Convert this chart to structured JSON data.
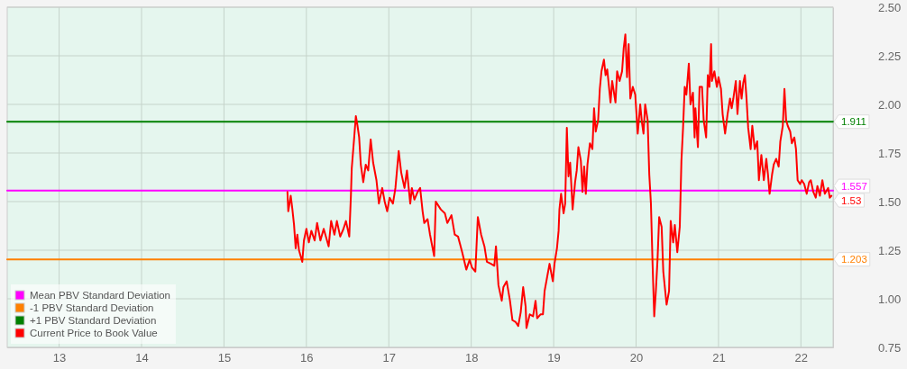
{
  "chart_data": {
    "type": "line",
    "xlim": [
      12.37,
      22.39
    ],
    "ylim": [
      0.75,
      2.5
    ],
    "xticks": [
      13,
      14,
      15,
      16,
      17,
      18,
      19,
      20,
      21,
      22
    ],
    "yticks": [
      {
        "value": 0.75,
        "label": "0.75"
      },
      {
        "value": 1,
        "label": "1.00"
      },
      {
        "value": 1.25,
        "label": "1.25"
      },
      {
        "value": 1.5,
        "label": "1.50"
      },
      {
        "value": 1.75,
        "label": "1.75"
      },
      {
        "value": 2,
        "label": "2.00"
      },
      {
        "value": 2.25,
        "label": "2.25"
      },
      {
        "value": 2.5,
        "label": "2.50"
      }
    ],
    "grid": true,
    "legend": "bottom left",
    "series": [
      {
        "name": "Mean PBV Standard Deviation",
        "color": "#ff00ff",
        "x": [
          12.37,
          22.39
        ],
        "values": [
          1.557,
          1.557
        ],
        "value_labels": [
          null,
          "1.557"
        ]
      },
      {
        "name": "-1 PBV Standard Deviation",
        "color": "#ff8000",
        "x": [
          12.37,
          22.39
        ],
        "values": [
          1.203,
          1.203
        ],
        "value_labels": [
          null,
          "1.203"
        ]
      },
      {
        "name": "+1 PBV Standard Deviation",
        "color": "#008000",
        "x": [
          12.37,
          22.39
        ],
        "values": [
          1.911,
          1.911
        ],
        "value_labels": [
          null,
          "1.911"
        ]
      },
      {
        "name": "Current Price to Book Value",
        "color": "#ff0000",
        "x": [
          15.77,
          15.78,
          15.81,
          15.83,
          15.85,
          15.87,
          15.89,
          15.91,
          15.95,
          15.97,
          16.0,
          16.03,
          16.06,
          16.1,
          16.13,
          16.17,
          16.21,
          16.25,
          16.27,
          16.3,
          16.34,
          16.37,
          16.41,
          16.45,
          16.48,
          16.52,
          16.54,
          16.55,
          16.58,
          16.6,
          16.62,
          16.64,
          16.66,
          16.69,
          16.72,
          16.75,
          16.78,
          16.81,
          16.85,
          16.88,
          16.92,
          16.95,
          16.98,
          17.01,
          17.05,
          17.08,
          17.12,
          17.15,
          17.19,
          17.22,
          17.26,
          17.28,
          17.31,
          17.35,
          17.38,
          17.41,
          17.43,
          17.47,
          17.5,
          17.55,
          17.57,
          17.63,
          17.68,
          17.71,
          17.76,
          17.8,
          17.84,
          17.89,
          17.94,
          17.98,
          18.01,
          18.05,
          18.08,
          18.12,
          18.16,
          18.19,
          18.24,
          18.28,
          18.3,
          18.33,
          18.37,
          18.39,
          18.43,
          18.47,
          18.5,
          18.54,
          18.57,
          18.6,
          18.63,
          18.66,
          18.67,
          18.71,
          18.75,
          18.78,
          18.8,
          18.84,
          18.87,
          18.89,
          18.92,
          18.95,
          18.99,
          19.01,
          19.04,
          19.06,
          19.07,
          19.09,
          19.12,
          19.14,
          19.16,
          19.18,
          19.2,
          19.23,
          19.26,
          19.28,
          19.3,
          19.33,
          19.35,
          19.37,
          19.39,
          19.41,
          19.44,
          19.47,
          19.49,
          19.51,
          19.54,
          19.56,
          19.58,
          19.61,
          19.63,
          19.65,
          19.69,
          19.71,
          19.75,
          19.77,
          19.8,
          19.83,
          19.85,
          19.87,
          19.89,
          19.91,
          19.93,
          19.96,
          19.99,
          20.02,
          20.05,
          20.07,
          20.09,
          20.11,
          20.14,
          20.16,
          20.18,
          20.2,
          20.22,
          20.24,
          20.26,
          20.28,
          20.31,
          20.33,
          20.37,
          20.4,
          20.42,
          20.45,
          20.47,
          20.5,
          20.53,
          20.55,
          20.57,
          20.59,
          20.61,
          20.64,
          20.66,
          20.69,
          20.71,
          20.72,
          20.75,
          20.77,
          20.8,
          20.82,
          20.85,
          20.87,
          20.89,
          20.91,
          20.92,
          20.95,
          20.98,
          21.0,
          21.03,
          21.05,
          21.08,
          21.11,
          21.14,
          21.16,
          21.18,
          21.21,
          21.23,
          21.26,
          21.28,
          21.3,
          21.32,
          21.34,
          21.36,
          21.39,
          21.41,
          21.44,
          21.47,
          21.49,
          21.52,
          21.55,
          21.58,
          21.6,
          21.62,
          21.65,
          21.67,
          21.7,
          21.73,
          21.75,
          21.78,
          21.8,
          21.82,
          21.84,
          21.87,
          21.89,
          21.92,
          21.94,
          21.96,
          21.99,
          22.01,
          22.04,
          22.07,
          22.1,
          22.12,
          22.15,
          22.18,
          22.2,
          22.23,
          22.26,
          22.29,
          22.33,
          22.35,
          22.37
        ],
        "values": [
          1.55,
          1.45,
          1.53,
          1.46,
          1.38,
          1.26,
          1.33,
          1.25,
          1.19,
          1.3,
          1.36,
          1.29,
          1.35,
          1.3,
          1.39,
          1.3,
          1.36,
          1.3,
          1.27,
          1.4,
          1.33,
          1.4,
          1.32,
          1.36,
          1.4,
          1.32,
          1.53,
          1.67,
          1.83,
          1.94,
          1.89,
          1.83,
          1.69,
          1.6,
          1.69,
          1.66,
          1.82,
          1.7,
          1.61,
          1.49,
          1.57,
          1.5,
          1.45,
          1.52,
          1.49,
          1.57,
          1.76,
          1.65,
          1.57,
          1.66,
          1.49,
          1.57,
          1.51,
          1.55,
          1.57,
          1.45,
          1.39,
          1.41,
          1.33,
          1.22,
          1.5,
          1.46,
          1.44,
          1.39,
          1.43,
          1.33,
          1.32,
          1.24,
          1.15,
          1.2,
          1.16,
          1.14,
          1.42,
          1.33,
          1.27,
          1.19,
          1.18,
          1.17,
          1.27,
          1.07,
          0.99,
          1.06,
          1.09,
          0.99,
          0.89,
          0.88,
          0.86,
          0.93,
          1.06,
          0.96,
          0.85,
          0.92,
          0.91,
          0.99,
          0.9,
          0.92,
          0.92,
          1.04,
          1.11,
          1.18,
          1.09,
          1.18,
          1.26,
          1.35,
          1.46,
          1.54,
          1.44,
          1.49,
          1.88,
          1.63,
          1.7,
          1.46,
          1.6,
          1.66,
          1.78,
          1.71,
          1.55,
          1.68,
          1.54,
          1.69,
          1.8,
          1.77,
          1.98,
          1.86,
          1.92,
          2.08,
          2.17,
          2.23,
          2.15,
          2.18,
          2.01,
          2.12,
          2.01,
          2.17,
          2.12,
          2.17,
          2.29,
          2.36,
          2.14,
          2.31,
          2.03,
          2.09,
          2.05,
          1.85,
          2.0,
          1.91,
          1.85,
          2.0,
          1.92,
          1.64,
          1.49,
          1.18,
          0.91,
          1.04,
          1.2,
          1.42,
          1.37,
          1.14,
          0.97,
          1.04,
          1.4,
          1.29,
          1.38,
          1.24,
          1.37,
          1.71,
          1.88,
          2.09,
          2.05,
          2.21,
          2.0,
          2.06,
          1.83,
          1.98,
          1.78,
          2.09,
          2.09,
          1.92,
          1.83,
          2.15,
          2.09,
          2.31,
          2.12,
          2.17,
          2.09,
          2.14,
          2.08,
          1.95,
          1.85,
          1.95,
          2.03,
          1.98,
          2.03,
          2.12,
          1.95,
          2.12,
          2.03,
          2.11,
          2.15,
          2.03,
          1.88,
          1.77,
          1.89,
          1.77,
          1.81,
          1.61,
          1.74,
          1.61,
          1.72,
          1.64,
          1.54,
          1.64,
          1.69,
          1.72,
          1.68,
          1.81,
          1.89,
          2.08,
          1.92,
          1.89,
          1.86,
          1.8,
          1.83,
          1.77,
          1.61,
          1.59,
          1.61,
          1.59,
          1.54,
          1.6,
          1.61,
          1.55,
          1.52,
          1.58,
          1.53,
          1.61,
          1.54,
          1.57,
          1.52,
          1.53
        ],
        "value_labels": [
          null,
          null,
          null,
          null,
          null,
          null,
          null,
          null,
          null,
          null,
          null,
          null,
          null,
          null,
          null,
          null,
          null,
          null,
          null,
          null,
          null,
          null,
          null,
          null,
          null,
          null,
          null,
          null,
          null,
          null,
          null,
          null,
          null,
          null,
          null,
          null,
          null,
          null,
          null,
          null,
          null,
          null,
          null,
          null,
          null,
          null,
          null,
          null,
          null,
          null,
          null,
          null,
          null,
          null,
          null,
          null,
          null,
          null,
          null,
          null,
          null,
          null,
          null,
          null,
          null,
          null,
          null,
          null,
          null,
          null,
          null,
          null,
          null,
          null,
          null,
          null,
          null,
          null,
          null,
          null,
          null,
          null,
          null,
          null,
          null,
          null,
          null,
          null,
          null,
          null,
          null,
          null,
          null,
          null,
          null,
          null,
          null,
          null,
          null,
          null,
          null,
          null,
          null,
          null,
          null,
          null,
          null,
          null,
          null,
          null,
          null,
          null,
          null,
          null,
          null,
          null,
          null,
          null,
          null,
          null,
          null,
          null,
          null,
          null,
          null,
          null,
          null,
          null,
          null,
          null,
          null,
          null,
          null,
          null,
          null,
          null,
          null,
          null,
          null,
          null,
          null,
          null,
          null,
          null,
          null,
          null,
          null,
          null,
          null,
          null,
          null,
          null,
          null,
          null,
          null,
          null,
          null,
          null,
          null,
          null,
          null,
          null,
          null,
          null,
          null,
          null,
          null,
          null,
          null,
          null,
          null,
          null,
          null,
          null,
          null,
          null,
          null,
          null,
          null,
          null,
          null,
          null,
          null,
          null,
          null,
          null,
          null,
          null,
          null,
          null,
          null,
          null,
          null,
          null,
          null,
          null,
          null,
          null,
          null,
          null,
          null,
          null,
          null,
          null,
          null,
          null,
          null,
          null,
          null,
          null,
          null,
          null,
          null,
          null,
          null,
          null,
          null,
          null,
          null,
          null,
          null,
          null,
          null,
          null,
          null,
          null,
          null,
          null,
          null,
          null,
          null,
          null,
          null,
          null,
          null,
          null,
          null,
          null,
          null,
          "1.53"
        ]
      }
    ]
  }
}
